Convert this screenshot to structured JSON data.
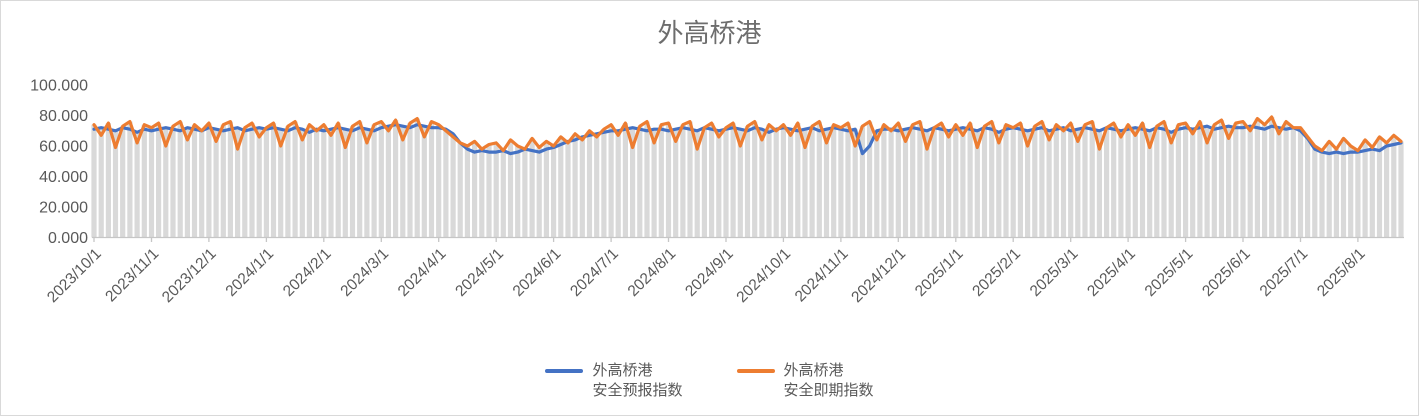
{
  "chart_data": {
    "type": "line",
    "title": "外高桥港",
    "ylim": [
      0,
      100
    ],
    "y_tick_labels": [
      "0.000",
      "20.000",
      "40.000",
      "60.000",
      "80.000",
      "100.000"
    ],
    "x_tick_labels": [
      "2023/10/1",
      "2023/11/1",
      "2023/12/1",
      "2024/1/1",
      "2024/2/1",
      "2024/3/1",
      "2024/4/1",
      "2024/5/1",
      "2024/6/1",
      "2024/7/1",
      "2024/8/1",
      "2024/9/1",
      "2024/10/1",
      "2024/11/1",
      "2024/12/1",
      "2025/1/1",
      "2025/2/1",
      "2025/3/1",
      "2025/4/1",
      "2025/5/1",
      "2025/6/1",
      "2025/7/1",
      "2025/8/1"
    ],
    "points_per_month": 8,
    "legend_position": "bottom-center",
    "grid": false,
    "drop_lines": true,
    "drop_line_color": "#d9d9d9",
    "axis_color": "#c6c6c6",
    "series": [
      {
        "name": "外高桥港安全预报指数",
        "color": "#4472C4",
        "values": [
          71,
          72,
          71,
          70,
          72,
          71,
          69,
          71,
          70,
          71,
          72,
          71,
          70,
          72,
          71,
          70,
          72,
          71,
          70,
          71,
          72,
          70,
          71,
          72,
          71,
          72,
          71,
          70,
          72,
          71,
          69,
          71,
          70,
          71,
          72,
          71,
          70,
          72,
          71,
          70,
          72,
          73,
          74,
          73,
          72,
          74,
          73,
          72,
          72,
          71,
          68,
          62,
          58,
          56,
          57,
          56,
          56,
          57,
          55,
          56,
          58,
          57,
          56,
          58,
          59,
          61,
          63,
          64,
          66,
          67,
          68,
          69,
          70,
          70,
          71,
          72,
          71,
          70,
          71,
          71,
          70,
          71,
          72,
          71,
          70,
          72,
          71,
          70,
          71,
          72,
          71,
          70,
          72,
          71,
          69,
          71,
          72,
          71,
          70,
          71,
          72,
          70,
          71,
          72,
          71,
          70,
          71,
          55,
          60,
          70,
          71,
          71,
          70,
          71,
          72,
          71,
          70,
          72,
          71,
          70,
          71,
          72,
          71,
          70,
          72,
          71,
          69,
          71,
          72,
          71,
          70,
          71,
          72,
          70,
          71,
          72,
          70,
          71,
          72,
          71,
          70,
          72,
          71,
          70,
          71,
          72,
          71,
          70,
          72,
          71,
          69,
          71,
          72,
          71,
          72,
          73,
          71,
          72,
          73,
          72,
          72,
          73,
          72,
          71,
          73,
          72,
          71,
          72,
          70,
          65,
          58,
          56,
          55,
          56,
          55,
          56,
          56,
          57,
          58,
          57,
          60,
          61,
          62
        ]
      },
      {
        "name": "外高桥港安全即期指数",
        "color": "#ED7D31",
        "values": [
          74,
          67,
          75,
          59,
          73,
          76,
          62,
          74,
          72,
          75,
          60,
          73,
          76,
          64,
          74,
          70,
          75,
          63,
          74,
          76,
          58,
          72,
          75,
          66,
          72,
          75,
          60,
          73,
          76,
          64,
          74,
          70,
          74,
          67,
          75,
          59,
          73,
          76,
          62,
          74,
          76,
          70,
          77,
          64,
          75,
          78,
          66,
          76,
          74,
          70,
          66,
          62,
          60,
          63,
          58,
          61,
          62,
          57,
          64,
          60,
          58,
          65,
          59,
          63,
          60,
          66,
          62,
          68,
          64,
          70,
          66,
          71,
          74,
          67,
          75,
          59,
          73,
          76,
          62,
          74,
          75,
          63,
          74,
          76,
          58,
          72,
          75,
          66,
          72,
          75,
          60,
          73,
          76,
          64,
          74,
          70,
          74,
          67,
          75,
          59,
          73,
          76,
          62,
          74,
          72,
          75,
          60,
          73,
          76,
          64,
          74,
          70,
          75,
          63,
          74,
          76,
          58,
          72,
          75,
          66,
          74,
          67,
          75,
          59,
          73,
          76,
          62,
          74,
          72,
          75,
          60,
          73,
          76,
          64,
          74,
          70,
          75,
          63,
          74,
          76,
          58,
          72,
          75,
          66,
          74,
          67,
          75,
          59,
          73,
          76,
          62,
          74,
          75,
          68,
          76,
          62,
          74,
          77,
          65,
          75,
          76,
          70,
          78,
          74,
          79,
          68,
          76,
          72,
          72,
          66,
          60,
          57,
          63,
          58,
          65,
          60,
          57,
          64,
          59,
          66,
          62,
          67,
          63
        ]
      }
    ]
  },
  "legend": {
    "items": [
      {
        "line1": "外高桥港",
        "line2": "安全预报指数",
        "color": "#4472C4"
      },
      {
        "line1": "外高桥港",
        "line2": "安全即期指数",
        "color": "#ED7D31"
      }
    ]
  }
}
